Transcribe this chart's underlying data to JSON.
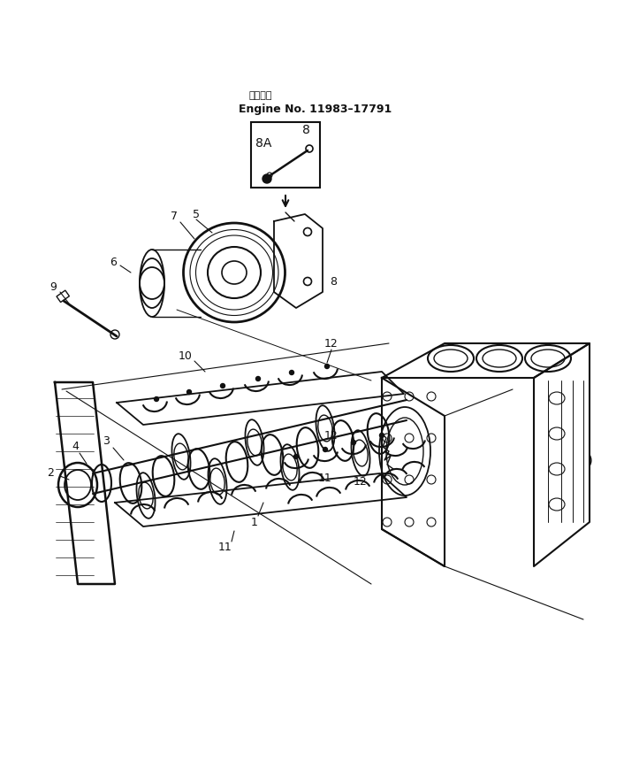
{
  "bg_color": "#ffffff",
  "line_color": "#111111",
  "engine_no_jp": "適用号簼",
  "engine_no_en": "Engine No. 11983–17791",
  "figsize": [
    7.06,
    8.6
  ],
  "dpi": 100,
  "xlim": [
    0,
    706
  ],
  "ylim": [
    0,
    860
  ]
}
